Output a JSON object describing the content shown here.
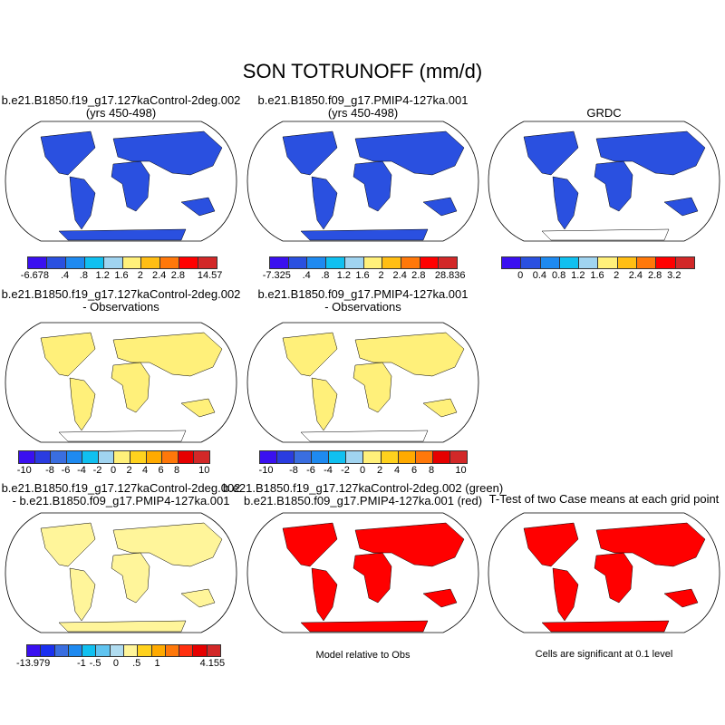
{
  "title": "SON TOTRUNOFF (mm/d)",
  "panels": [
    {
      "title1": "b.e21.B1850.f19_g17.127kaControl-2deg.002",
      "title2": "(yrs 450-498)"
    },
    {
      "title1": "b.e21.B1850.f09_g17.PMIP4-127ka.001",
      "title2": "(yrs 450-498)"
    },
    {
      "title1": "GRDC",
      "title2": ""
    },
    {
      "title1": "b.e21.B1850.f19_g17.127kaControl-2deg.002",
      "title2": "- Observations"
    },
    {
      "title1": "b.e21.B1850.f09_g17.PMIP4-127ka.001",
      "title2": "- Observations"
    },
    {
      "title1": "b.e21.B1850.f19_g17.127kaControl-2deg.002",
      "title2": "- b.e21.B1850.f09_g17.PMIP4-127ka.001"
    },
    {
      "title1": "b.e21.B1850.f19_g17.127kaControl-2deg.002 (green)",
      "title2": "b.e21.B1850.f09_g17.PMIP4-127ka.001 (red)"
    },
    {
      "title1": "T-Test of two Case means at each grid point",
      "title2": ""
    }
  ],
  "notes": {
    "model_relative": "Model relative to Obs",
    "significance": "Cells are significant at 0.1 level"
  },
  "colorbars": [
    {
      "colors": [
        "#3a10f0",
        "#2a50e0",
        "#1e8af0",
        "#10c0f0",
        "#a0d4f0",
        "#fff07a",
        "#ffbe14",
        "#ff780a",
        "#ff0000",
        "#d22828"
      ],
      "labels": [
        "-6.678",
        ".4",
        ".8",
        "1.2",
        "1.6",
        "2",
        "2.4",
        "2.8",
        "14.57"
      ]
    },
    {
      "colors": [
        "#3a10f0",
        "#2a50e0",
        "#1e8af0",
        "#10c0f0",
        "#a0d4f0",
        "#fff07a",
        "#ffbe14",
        "#ff780a",
        "#ff0000",
        "#d22828"
      ],
      "labels": [
        "-7.325",
        ".4",
        ".8",
        "1.2",
        "1.6",
        "2",
        "2.4",
        "2.8",
        "28.836"
      ]
    },
    {
      "colors": [
        "#3a10f0",
        "#2a50e0",
        "#1e8af0",
        "#10c0f0",
        "#a0d4f0",
        "#fff07a",
        "#ffbe14",
        "#ff780a",
        "#ff0000",
        "#d22828"
      ],
      "labels": [
        "0",
        "0.4",
        "0.8",
        "1.2",
        "1.6",
        "2",
        "2.4",
        "2.8",
        "3.2"
      ]
    },
    {
      "colors": [
        "#3a10f0",
        "#2a3ce0",
        "#3a6ee0",
        "#1e8af0",
        "#10c0f0",
        "#a0d4f0",
        "#fff07a",
        "#ffd21e",
        "#ffaa00",
        "#ff780a",
        "#e60000",
        "#d22828"
      ],
      "labels": [
        "-10",
        "-8",
        "-6",
        "-4",
        "-2",
        "0",
        "2",
        "4",
        "6",
        "8",
        "10"
      ]
    },
    {
      "colors": [
        "#3a10f0",
        "#2a3ce0",
        "#3a6ee0",
        "#1e8af0",
        "#10c0f0",
        "#a0d4f0",
        "#fff07a",
        "#ffd21e",
        "#ffaa00",
        "#ff780a",
        "#e60000",
        "#d22828"
      ],
      "labels": [
        "-10",
        "-8",
        "-6",
        "-4",
        "-2",
        "0",
        "2",
        "4",
        "6",
        "8",
        "10"
      ]
    },
    {
      "colors": [
        "#3a10f0",
        "#1a30f0",
        "#3a6ee0",
        "#1e8af0",
        "#10c0f0",
        "#60c4f0",
        "#b0dcf0",
        "#fff59a",
        "#ffd21e",
        "#ffaa00",
        "#ff780a",
        "#ff3010",
        "#e60000",
        "#d22828"
      ],
      "labels": [
        "-13.979",
        "-1",
        "-.5",
        "0",
        ".5",
        "1",
        "4.155"
      ]
    }
  ],
  "map_fills": [
    "#2a50e0",
    "#2a50e0",
    "#2a50e0",
    "#fff07a",
    "#fff07a",
    "#fff59a",
    "#ff0000",
    "#ff0000"
  ]
}
